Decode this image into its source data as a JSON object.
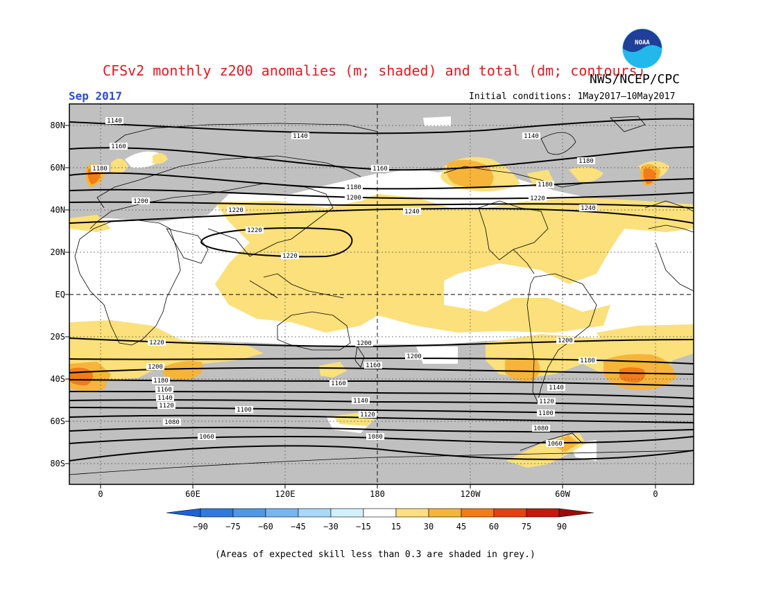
{
  "title": "CFSv2 monthly z200 anomalies (m; shaded) and total (dm; contours)",
  "agency": "NWS/NCEP/CPC",
  "logo_text": "NOAA",
  "month": "Sep 2017",
  "initial_conditions": "Initial conditions: 1May2017–10May2017",
  "lat_labels": [
    "80N",
    "60N",
    "40N",
    "20N",
    "EQ",
    "20S",
    "40S",
    "60S",
    "80S"
  ],
  "lon_labels": [
    "0",
    "60E",
    "120E",
    "180",
    "120W",
    "60W",
    "0"
  ],
  "colorbar_ticks": [
    "−90",
    "−75",
    "−60",
    "−45",
    "−30",
    "−15",
    "15",
    "30",
    "45",
    "60",
    "75",
    "90"
  ],
  "colorbar_colors": [
    "#1c63d6",
    "#2f7ae0",
    "#4f97ea",
    "#78b6f2",
    "#a9d8f8",
    "#d2f0fb",
    "#ffffff",
    "#fbe07b",
    "#f7b43b",
    "#f27c18",
    "#e8420c",
    "#c8170e",
    "#9b0a0a"
  ],
  "grey_color": "#c0c0c0",
  "contour_labels": [
    "1140",
    "1140",
    "1140",
    "1160",
    "1160",
    "1180",
    "1180",
    "1180",
    "1180",
    "1200",
    "1200",
    "1220",
    "1220",
    "1240",
    "1240",
    "1220",
    "1220",
    "1220",
    "1200",
    "1200",
    "1200",
    "1200",
    "1180",
    "1180",
    "1160",
    "1160",
    "1160",
    "1140",
    "1140",
    "1140",
    "1120",
    "1120",
    "1120",
    "1100",
    "1100",
    "1080",
    "1080",
    "1080",
    "1060",
    "1060"
  ],
  "footnote": "(Areas of expected skill less than 0.3 are shaded in grey.)"
}
